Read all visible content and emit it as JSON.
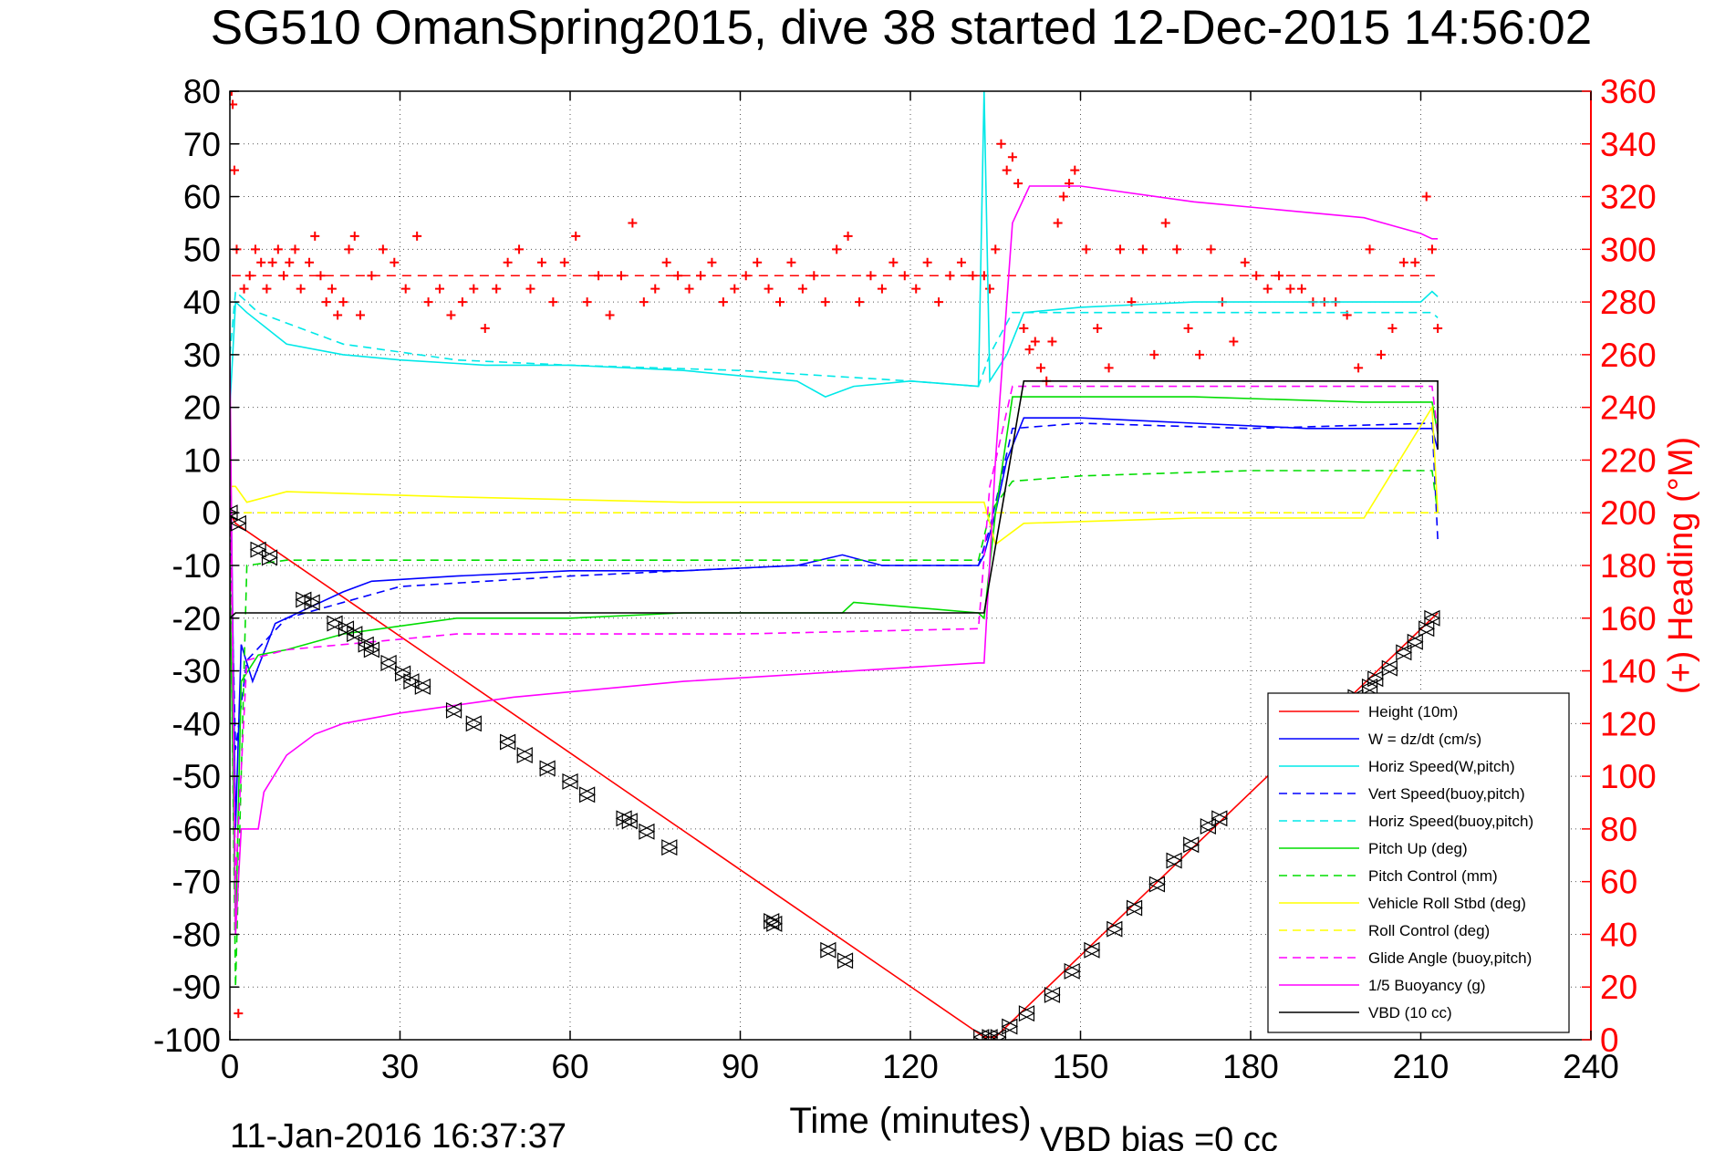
{
  "chart_data": {
    "type": "line",
    "title": "SG510 OmanSpring2015, dive 38 started 12-Dec-2015 14:56:02",
    "xlabel": "Time (minutes)",
    "ylabel": "",
    "ylabel_right": "(+) Heading (°M)",
    "footer_date": "11-Jan-2016 16:37:37",
    "footer_bias": "VBD bias =0 cc",
    "xlim": [
      0,
      240
    ],
    "ylim": [
      -100,
      80
    ],
    "ylim_right": [
      0,
      360
    ],
    "xticks": [
      0,
      30,
      60,
      90,
      120,
      150,
      180,
      210,
      240
    ],
    "yticks": [
      -100,
      -90,
      -80,
      -70,
      -60,
      -50,
      -40,
      -30,
      -20,
      -10,
      0,
      10,
      20,
      30,
      40,
      50,
      60,
      70,
      80
    ],
    "yticks_right": [
      0,
      20,
      40,
      60,
      80,
      100,
      120,
      140,
      160,
      180,
      200,
      220,
      240,
      260,
      280,
      300,
      320,
      340,
      360
    ],
    "grid": true,
    "legend_position": "bottom-right",
    "right_axis_color": "#ff0000",
    "series": [
      {
        "name": "Height (10m)",
        "color": "#ff0000",
        "style": "solid",
        "x": [
          0,
          1,
          133,
          135,
          213
        ],
        "y": [
          0,
          -2,
          -99.5,
          -99.5,
          -19
        ]
      },
      {
        "name": "W = dz/dt (cm/s)",
        "color": "#0000ff",
        "style": "solid",
        "x": [
          0,
          1,
          2,
          4,
          8,
          14,
          20,
          25,
          40,
          60,
          80,
          100,
          108,
          115,
          132,
          133,
          135,
          137,
          140,
          150,
          170,
          190,
          212,
          213
        ],
        "y": [
          20,
          -60,
          -25,
          -32,
          -21,
          -18,
          -15,
          -13,
          -12,
          -11,
          -11,
          -10,
          -8,
          -10,
          -10,
          -8,
          0,
          10,
          18,
          18,
          17,
          16,
          16,
          12
        ]
      },
      {
        "name": "Horiz Speed(W,pitch)",
        "color": "#00e8e8",
        "style": "solid",
        "x": [
          0,
          1,
          3,
          10,
          20,
          30,
          45,
          60,
          80,
          100,
          105,
          110,
          120,
          132,
          133,
          134,
          137,
          140,
          150,
          170,
          190,
          210,
          212,
          213
        ],
        "y": [
          20,
          40,
          38,
          32,
          30,
          29,
          28,
          28,
          27,
          25,
          22,
          24,
          25,
          24,
          80,
          25,
          30,
          38,
          39,
          40,
          40,
          40,
          42,
          41
        ]
      },
      {
        "name": "Vert Speed(buoy,pitch)",
        "color": "#0000ff",
        "style": "dashed",
        "x": [
          0,
          1,
          3,
          10,
          30,
          60,
          100,
          132,
          134,
          138,
          150,
          180,
          212,
          213
        ],
        "y": [
          0,
          -45,
          -28,
          -20,
          -14,
          -12,
          -10,
          -10,
          -3,
          16,
          17,
          16,
          17,
          -5
        ]
      },
      {
        "name": "Horiz Speed(buoy,pitch)",
        "color": "#00e8e8",
        "style": "dashed",
        "x": [
          0,
          1,
          5,
          20,
          40,
          60,
          90,
          120,
          132,
          134,
          138,
          150,
          180,
          212,
          213
        ],
        "y": [
          30,
          42,
          38,
          32,
          29,
          28,
          27,
          25,
          24,
          30,
          38,
          38,
          38,
          38,
          37
        ]
      },
      {
        "name": "Pitch Up (deg)",
        "color": "#00dd00",
        "style": "solid",
        "x": [
          0,
          1,
          2,
          5,
          10,
          20,
          40,
          60,
          80,
          108,
          110,
          132,
          133,
          135,
          138,
          145,
          170,
          200,
          212,
          213
        ],
        "y": [
          -10,
          -80,
          -32,
          -27,
          -26,
          -23,
          -20,
          -20,
          -19,
          -19,
          -17,
          -19,
          -20,
          0,
          22,
          22,
          22,
          21,
          21,
          15
        ]
      },
      {
        "name": "Pitch Control (mm)",
        "color": "#00dd00",
        "style": "dashed",
        "x": [
          0,
          1,
          3,
          10,
          30,
          60,
          132,
          134,
          138,
          150,
          180,
          212,
          213
        ],
        "y": [
          -5,
          -90,
          -10,
          -9,
          -9,
          -9,
          -9,
          0,
          6,
          7,
          8,
          8,
          0
        ]
      },
      {
        "name": "Vehicle Roll Stbd (deg)",
        "color": "#ffff00",
        "style": "solid",
        "x": [
          0,
          1,
          3,
          10,
          40,
          80,
          120,
          132,
          133,
          135,
          140,
          170,
          200,
          212,
          213
        ],
        "y": [
          5,
          5,
          2,
          4,
          3,
          2,
          2,
          2,
          2,
          -6,
          -2,
          -1,
          -1,
          20,
          0
        ]
      },
      {
        "name": "Roll Control (deg)",
        "color": "#ffff00",
        "style": "dashed",
        "x": [
          0,
          5,
          50,
          100,
          132,
          135,
          150,
          200,
          213
        ],
        "y": [
          0,
          0,
          0,
          0,
          0,
          0,
          0,
          0,
          0
        ]
      },
      {
        "name": "Glide Angle (buoy,pitch)",
        "color": "#ff00ff",
        "style": "dashed",
        "x": [
          0,
          1,
          3,
          10,
          20,
          40,
          60,
          90,
          132,
          134,
          138,
          150,
          180,
          212,
          213
        ],
        "y": [
          10,
          -70,
          -28,
          -26,
          -25,
          -23,
          -23,
          -23,
          -22,
          5,
          24,
          24,
          24,
          24,
          15
        ]
      },
      {
        "name": "1/5 Buoyancy (g)",
        "color": "#ff00ff",
        "style": "solid",
        "x": [
          0,
          1,
          2,
          5,
          6,
          10,
          15,
          20,
          30,
          50,
          80,
          110,
          132,
          133,
          135,
          138,
          141,
          150,
          170,
          190,
          200,
          210,
          212,
          213
        ],
        "y": [
          30,
          -80,
          -60,
          -60,
          -53,
          -46,
          -42,
          -40,
          -38,
          -35,
          -32,
          -30,
          -28.5,
          -28.5,
          10,
          55,
          62,
          62,
          59,
          57,
          56,
          53,
          52,
          52
        ]
      },
      {
        "name": "VBD (10 cc)",
        "color": "#000000",
        "style": "solid",
        "x": [
          0,
          1,
          2,
          133,
          140,
          213,
          213
        ],
        "y": [
          -20,
          -19,
          -19,
          -19,
          25,
          25,
          12
        ]
      }
    ],
    "heading_mean_line": {
      "color": "#ff0000",
      "style": "dashed",
      "value": 290
    },
    "heading_points": {
      "name": "(+) Heading (°M)",
      "color": "#ff0000",
      "marker": "+",
      "x": [
        0.3,
        0.5,
        0.8,
        1.2,
        1.5,
        2.5,
        3.5,
        4.5,
        5.5,
        6.5,
        7.5,
        8.5,
        9.5,
        10.5,
        11.5,
        12.5,
        14,
        15,
        16,
        17,
        18,
        19,
        20,
        21,
        22,
        23,
        25,
        27,
        29,
        31,
        33,
        35,
        37,
        39,
        41,
        43,
        45,
        47,
        49,
        51,
        53,
        55,
        57,
        59,
        61,
        63,
        65,
        67,
        69,
        71,
        73,
        75,
        77,
        79,
        81,
        83,
        85,
        87,
        89,
        91,
        93,
        95,
        97,
        99,
        101,
        103,
        105,
        107,
        109,
        111,
        113,
        115,
        117,
        119,
        121,
        123,
        125,
        127,
        129,
        131,
        133,
        134,
        135,
        136,
        137,
        138,
        139,
        140,
        141,
        142,
        143,
        144,
        145,
        146,
        147,
        148,
        149,
        151,
        153,
        155,
        157,
        159,
        161,
        163,
        165,
        167,
        169,
        171,
        173,
        175,
        177,
        179,
        181,
        183,
        185,
        187,
        189,
        191,
        193,
        195,
        197,
        199,
        201,
        203,
        205,
        207,
        209,
        211,
        212,
        213
      ],
      "y": [
        360,
        355,
        330,
        300,
        10,
        285,
        290,
        300,
        295,
        285,
        295,
        300,
        290,
        295,
        300,
        285,
        295,
        305,
        290,
        280,
        285,
        275,
        280,
        300,
        305,
        275,
        290,
        300,
        295,
        285,
        305,
        280,
        285,
        275,
        280,
        285,
        270,
        285,
        295,
        300,
        285,
        295,
        280,
        295,
        305,
        280,
        290,
        275,
        290,
        310,
        280,
        285,
        295,
        290,
        285,
        290,
        295,
        280,
        285,
        290,
        295,
        285,
        280,
        295,
        285,
        290,
        280,
        300,
        305,
        280,
        290,
        285,
        295,
        290,
        285,
        295,
        280,
        290,
        295,
        290,
        290,
        285,
        300,
        340,
        330,
        335,
        325,
        270,
        262,
        265,
        255,
        250,
        265,
        310,
        320,
        325,
        330,
        300,
        270,
        255,
        300,
        280,
        300,
        260,
        310,
        300,
        270,
        260,
        300,
        280,
        265,
        295,
        290,
        285,
        290,
        285,
        285,
        280,
        280,
        280,
        275,
        255,
        300,
        260,
        270,
        295,
        295,
        320,
        300,
        270
      ]
    },
    "dive_markers": {
      "marker": "triangles",
      "color": "#000000",
      "x": [
        0,
        1.5,
        5,
        7,
        13,
        14.5,
        18.5,
        20.5,
        22,
        24,
        25,
        28,
        30.5,
        32,
        34,
        39.5,
        43,
        49,
        52,
        56,
        60,
        63,
        69.5,
        70.5,
        73.5,
        77.5,
        95.5,
        96,
        105.5,
        108.5,
        132.5,
        134,
        135.5,
        137.5,
        140.5,
        145,
        148.5,
        152,
        156,
        159.5,
        163.5,
        166.5,
        169.5,
        172.5,
        174.5,
        198.5,
        201,
        202,
        204.5,
        207,
        209,
        211,
        212
      ],
      "y": [
        0,
        -2,
        -7,
        -8.5,
        -16.5,
        -17,
        -21,
        -22,
        -23,
        -25,
        -26,
        -28.5,
        -30.5,
        -32,
        -33,
        -37.5,
        -40,
        -43.5,
        -46,
        -48.5,
        -51,
        -53.5,
        -58,
        -58.5,
        -60.5,
        -63.5,
        -77.5,
        -78,
        -83,
        -85,
        -99.5,
        -99.5,
        -99.5,
        -97.5,
        -95,
        -91.5,
        -87,
        -83,
        -79,
        -75,
        -70.5,
        -66,
        -63,
        -59.5,
        -58,
        -35,
        -33,
        -31.5,
        -29.5,
        -26.5,
        -24.5,
        -22,
        -20
      ]
    }
  }
}
